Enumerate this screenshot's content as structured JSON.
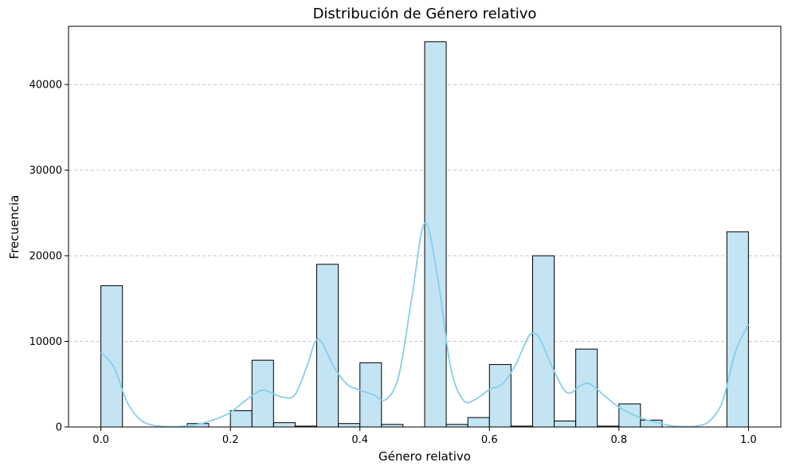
{
  "chart_data": {
    "type": "bar",
    "subtype": "histogram_with_kde",
    "title": "Distribución de Género relativo",
    "xlabel": "Género relativo",
    "ylabel": "Frecuencia",
    "xlim": [
      -0.05,
      1.05
    ],
    "ylim": [
      0,
      46800
    ],
    "xticks": [
      0.0,
      0.2,
      0.4,
      0.6,
      0.8,
      1.0
    ],
    "xtick_labels": [
      "0.0",
      "0.2",
      "0.4",
      "0.6",
      "0.8",
      "1.0"
    ],
    "yticks": [
      0,
      10000,
      20000,
      30000,
      40000
    ],
    "ytick_labels": [
      "0",
      "10000",
      "20000",
      "30000",
      "40000"
    ],
    "grid": "y-dashed",
    "bar_color": "#c2e4f3",
    "bar_edge_color": "#000000",
    "kde_color": "#87ceeb",
    "grid_color": "#c8c8c8",
    "bin_width": 0.0333,
    "bin_starts": [
      0.0,
      0.0333,
      0.0667,
      0.1,
      0.1333,
      0.1667,
      0.2,
      0.2333,
      0.2667,
      0.3,
      0.3333,
      0.3667,
      0.4,
      0.4333,
      0.4667,
      0.5,
      0.5333,
      0.5667,
      0.6,
      0.6333,
      0.6667,
      0.7,
      0.7333,
      0.7667,
      0.8,
      0.8333,
      0.8667,
      0.9,
      0.9333,
      0.9667
    ],
    "values": [
      16500,
      0,
      0,
      0,
      400,
      0,
      1900,
      7800,
      500,
      100,
      19000,
      400,
      7500,
      300,
      0,
      45000,
      300,
      1100,
      7300,
      100,
      20000,
      700,
      9100,
      100,
      2700,
      800,
      0,
      0,
      0,
      22800
    ],
    "kde": {
      "x": [
        0.0,
        0.02,
        0.04,
        0.06,
        0.08,
        0.1,
        0.12,
        0.14,
        0.16,
        0.18,
        0.2,
        0.22,
        0.24,
        0.25,
        0.26,
        0.28,
        0.3,
        0.32,
        0.33,
        0.34,
        0.36,
        0.38,
        0.4,
        0.42,
        0.44,
        0.46,
        0.48,
        0.5,
        0.52,
        0.54,
        0.56,
        0.58,
        0.6,
        0.62,
        0.64,
        0.66,
        0.67,
        0.68,
        0.7,
        0.72,
        0.74,
        0.75,
        0.76,
        0.78,
        0.8,
        0.82,
        0.84,
        0.86,
        0.88,
        0.9,
        0.92,
        0.94,
        0.96,
        0.98,
        1.0
      ],
      "y": [
        8700,
        7000,
        3000,
        900,
        200,
        60,
        50,
        200,
        500,
        1000,
        1700,
        2900,
        4000,
        4300,
        4100,
        3500,
        3800,
        7500,
        9800,
        10000,
        7000,
        5000,
        4300,
        3800,
        3200,
        6000,
        15000,
        23800,
        17500,
        7000,
        3100,
        3300,
        4400,
        5000,
        7200,
        10500,
        10900,
        10000,
        6500,
        4000,
        4800,
        5100,
        4800,
        3500,
        2300,
        1500,
        900,
        500,
        150,
        50,
        100,
        700,
        3000,
        8800,
        12000
      ]
    }
  }
}
